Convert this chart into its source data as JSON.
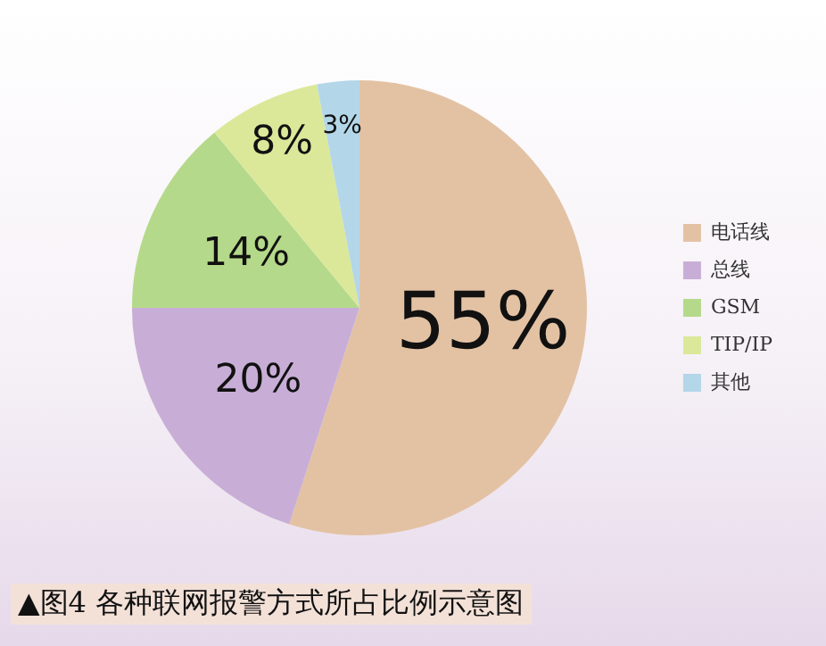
{
  "chart_data": {
    "type": "pie",
    "title": "▲图4 各种联网报警方式所占比例示意图",
    "categories": [
      "电话线",
      "总线",
      "GSM",
      "TIP/IP",
      "其他"
    ],
    "values": [
      55,
      20,
      14,
      8,
      3
    ],
    "colors": [
      "#e3c2a4",
      "#c8aed6",
      "#b5d98a",
      "#dbe89a",
      "#b3d6e8"
    ],
    "value_labels": [
      "55%",
      "20%",
      "14%",
      "8%",
      "3%"
    ],
    "legend": "right"
  }
}
